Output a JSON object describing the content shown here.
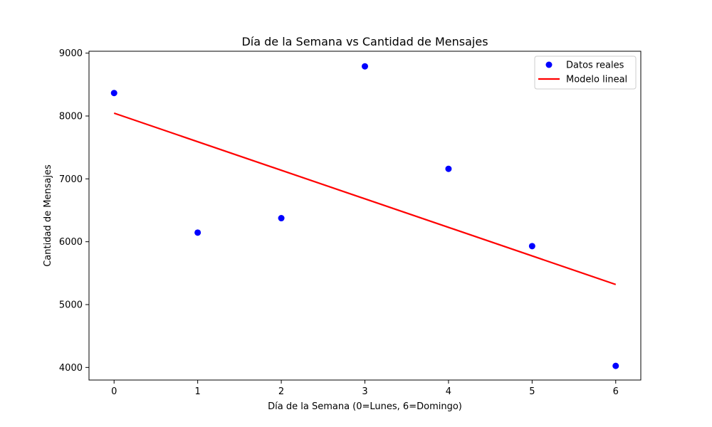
{
  "chart_data": {
    "type": "scatter",
    "title": "Día de la Semana vs Cantidad de Mensajes",
    "xlabel": "Día de la Semana (0=Lunes, 6=Domingo)",
    "ylabel": "Cantidad de Mensajes",
    "xlim": [
      -0.3,
      6.3
    ],
    "ylim": [
      3800,
      9030
    ],
    "xticks": [
      0,
      1,
      2,
      3,
      4,
      5,
      6
    ],
    "yticks": [
      4000,
      5000,
      6000,
      7000,
      8000,
      9000
    ],
    "grid": false,
    "legend_position": "top-right",
    "series": [
      {
        "name": "Datos reales",
        "kind": "scatter",
        "color": "#0000ff",
        "x": [
          0,
          1,
          2,
          3,
          4,
          5,
          6
        ],
        "y": [
          8365,
          6145,
          6375,
          8790,
          7160,
          5930,
          4025
        ]
      },
      {
        "name": "Modelo lineal",
        "kind": "line",
        "color": "#ff0000",
        "x": [
          0,
          6
        ],
        "y": [
          8045,
          5320
        ]
      }
    ]
  }
}
